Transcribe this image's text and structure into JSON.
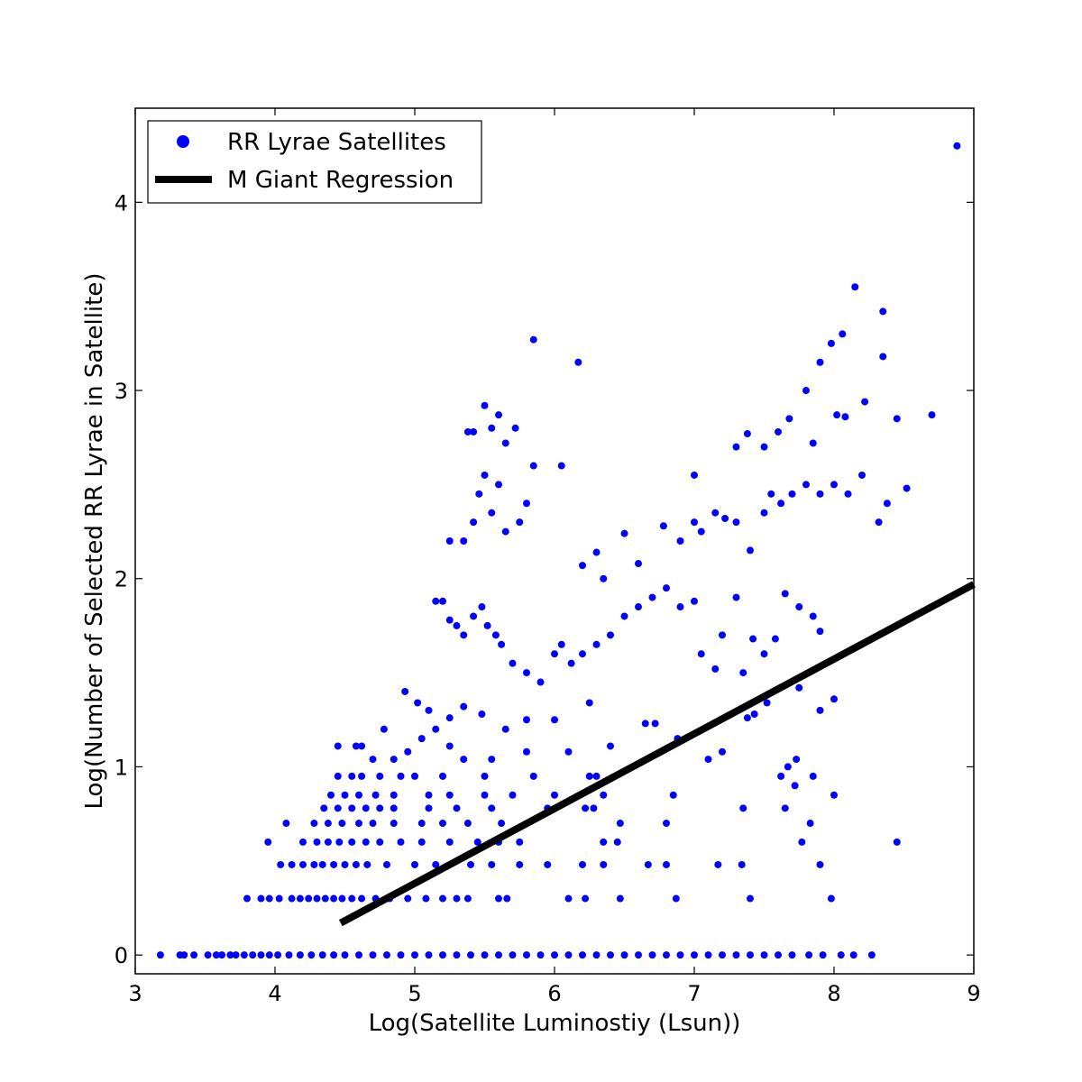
{
  "chart_data": {
    "type": "scatter",
    "title": "",
    "xlabel": "Log(Satellite Luminostiy (Lsun))",
    "ylabel": "Log(Number of Selected RR Lyrae in Satellite)",
    "xlim": [
      3,
      9
    ],
    "ylim": [
      -0.1,
      4.5
    ],
    "xticks": [
      "3",
      "4",
      "5",
      "6",
      "7",
      "8",
      "9"
    ],
    "yticks": [
      "0",
      "1",
      "2",
      "3",
      "4"
    ],
    "grid": false,
    "legend_position": "top-left",
    "colors": {
      "points": "#0000ff",
      "line": "#000000"
    },
    "series": [
      {
        "name": "RR Lyrae Satellites",
        "kind": "scatter",
        "points": [
          [
            3.18,
            0
          ],
          [
            3.32,
            0
          ],
          [
            3.35,
            0
          ],
          [
            3.42,
            0
          ],
          [
            3.52,
            0
          ],
          [
            3.58,
            0
          ],
          [
            3.62,
            0
          ],
          [
            3.68,
            0
          ],
          [
            3.72,
            0
          ],
          [
            3.78,
            0
          ],
          [
            3.84,
            0
          ],
          [
            3.9,
            0
          ],
          [
            3.96,
            0
          ],
          [
            4.02,
            0
          ],
          [
            4.1,
            0
          ],
          [
            4.18,
            0
          ],
          [
            4.26,
            0
          ],
          [
            4.34,
            0
          ],
          [
            4.42,
            0
          ],
          [
            4.5,
            0
          ],
          [
            4.6,
            0
          ],
          [
            4.7,
            0
          ],
          [
            4.8,
            0
          ],
          [
            4.9,
            0
          ],
          [
            5.0,
            0
          ],
          [
            5.1,
            0
          ],
          [
            5.2,
            0
          ],
          [
            5.3,
            0
          ],
          [
            5.4,
            0
          ],
          [
            5.5,
            0
          ],
          [
            5.6,
            0
          ],
          [
            5.7,
            0
          ],
          [
            5.8,
            0
          ],
          [
            5.9,
            0
          ],
          [
            6.0,
            0
          ],
          [
            6.1,
            0
          ],
          [
            6.2,
            0
          ],
          [
            6.3,
            0
          ],
          [
            6.4,
            0
          ],
          [
            6.5,
            0
          ],
          [
            6.6,
            0
          ],
          [
            6.7,
            0
          ],
          [
            6.8,
            0
          ],
          [
            6.9,
            0
          ],
          [
            7.0,
            0
          ],
          [
            7.1,
            0
          ],
          [
            7.2,
            0
          ],
          [
            7.3,
            0
          ],
          [
            7.4,
            0
          ],
          [
            7.5,
            0
          ],
          [
            7.6,
            0
          ],
          [
            7.7,
            0
          ],
          [
            7.82,
            0
          ],
          [
            7.92,
            0
          ],
          [
            8.05,
            0
          ],
          [
            8.14,
            0
          ],
          [
            8.27,
            0
          ],
          [
            3.8,
            0.3
          ],
          [
            3.9,
            0.3
          ],
          [
            3.96,
            0.3
          ],
          [
            4.03,
            0.3
          ],
          [
            4.12,
            0.3
          ],
          [
            4.18,
            0.3
          ],
          [
            4.24,
            0.3
          ],
          [
            4.3,
            0.3
          ],
          [
            4.36,
            0.3
          ],
          [
            4.42,
            0.3
          ],
          [
            4.48,
            0.3
          ],
          [
            4.55,
            0.3
          ],
          [
            4.62,
            0.3
          ],
          [
            4.72,
            0.3
          ],
          [
            4.82,
            0.3
          ],
          [
            4.95,
            0.3
          ],
          [
            5.08,
            0.3
          ],
          [
            5.2,
            0.3
          ],
          [
            5.3,
            0.3
          ],
          [
            5.38,
            0.3
          ],
          [
            5.6,
            0.3
          ],
          [
            5.66,
            0.3
          ],
          [
            6.1,
            0.3
          ],
          [
            6.22,
            0.3
          ],
          [
            6.47,
            0.3
          ],
          [
            6.87,
            0.3
          ],
          [
            7.4,
            0.3
          ],
          [
            7.98,
            0.3
          ],
          [
            3.95,
            0.6
          ],
          [
            4.04,
            0.48
          ],
          [
            4.12,
            0.48
          ],
          [
            4.2,
            0.48
          ],
          [
            4.28,
            0.48
          ],
          [
            4.34,
            0.48
          ],
          [
            4.42,
            0.48
          ],
          [
            4.5,
            0.48
          ],
          [
            4.58,
            0.48
          ],
          [
            4.66,
            0.48
          ],
          [
            4.8,
            0.48
          ],
          [
            5.0,
            0.48
          ],
          [
            5.15,
            0.48
          ],
          [
            5.4,
            0.48
          ],
          [
            5.55,
            0.48
          ],
          [
            5.75,
            0.48
          ],
          [
            5.95,
            0.48
          ],
          [
            6.2,
            0.48
          ],
          [
            6.35,
            0.48
          ],
          [
            6.67,
            0.48
          ],
          [
            6.8,
            0.48
          ],
          [
            7.17,
            0.48
          ],
          [
            7.34,
            0.48
          ],
          [
            7.9,
            0.48
          ],
          [
            4.2,
            0.6
          ],
          [
            4.3,
            0.6
          ],
          [
            4.38,
            0.6
          ],
          [
            4.46,
            0.6
          ],
          [
            4.55,
            0.6
          ],
          [
            4.65,
            0.6
          ],
          [
            4.75,
            0.6
          ],
          [
            4.9,
            0.6
          ],
          [
            5.05,
            0.6
          ],
          [
            5.25,
            0.6
          ],
          [
            5.45,
            0.6
          ],
          [
            5.6,
            0.6
          ],
          [
            5.75,
            0.6
          ],
          [
            6.35,
            0.6
          ],
          [
            6.45,
            0.6
          ],
          [
            7.77,
            0.6
          ],
          [
            8.45,
            0.6
          ],
          [
            4.08,
            0.7
          ],
          [
            4.28,
            0.7
          ],
          [
            4.38,
            0.7
          ],
          [
            4.48,
            0.7
          ],
          [
            4.6,
            0.7
          ],
          [
            4.7,
            0.7
          ],
          [
            4.85,
            0.7
          ],
          [
            5.05,
            0.7
          ],
          [
            5.2,
            0.7
          ],
          [
            5.38,
            0.7
          ],
          [
            5.62,
            0.7
          ],
          [
            6.47,
            0.7
          ],
          [
            6.8,
            0.7
          ],
          [
            7.83,
            0.7
          ],
          [
            4.35,
            0.78
          ],
          [
            4.45,
            0.78
          ],
          [
            4.55,
            0.78
          ],
          [
            4.65,
            0.78
          ],
          [
            4.75,
            0.78
          ],
          [
            4.85,
            0.78
          ],
          [
            5.1,
            0.78
          ],
          [
            5.3,
            0.78
          ],
          [
            5.55,
            0.78
          ],
          [
            5.95,
            0.78
          ],
          [
            6.22,
            0.78
          ],
          [
            6.28,
            0.78
          ],
          [
            7.35,
            0.78
          ],
          [
            7.65,
            0.78
          ],
          [
            4.4,
            0.85
          ],
          [
            4.5,
            0.85
          ],
          [
            4.6,
            0.85
          ],
          [
            4.72,
            0.85
          ],
          [
            4.85,
            0.85
          ],
          [
            5.1,
            0.85
          ],
          [
            5.25,
            0.85
          ],
          [
            5.5,
            0.85
          ],
          [
            5.7,
            0.85
          ],
          [
            6.0,
            0.85
          ],
          [
            6.35,
            0.85
          ],
          [
            6.85,
            0.85
          ],
          [
            7.72,
            0.9
          ],
          [
            7.85,
            0.95
          ],
          [
            8.0,
            0.85
          ],
          [
            4.45,
            0.95
          ],
          [
            4.55,
            0.95
          ],
          [
            4.62,
            0.95
          ],
          [
            4.75,
            0.95
          ],
          [
            4.9,
            0.95
          ],
          [
            5.0,
            0.95
          ],
          [
            5.2,
            0.95
          ],
          [
            5.5,
            0.95
          ],
          [
            5.85,
            0.95
          ],
          [
            6.25,
            0.95
          ],
          [
            6.3,
            0.95
          ],
          [
            7.62,
            0.95
          ],
          [
            7.67,
            1.0
          ],
          [
            4.45,
            1.11
          ],
          [
            4.58,
            1.11
          ],
          [
            4.62,
            1.11
          ],
          [
            4.7,
            1.04
          ],
          [
            4.85,
            1.04
          ],
          [
            4.95,
            1.08
          ],
          [
            5.05,
            1.15
          ],
          [
            5.15,
            1.2
          ],
          [
            5.25,
            1.11
          ],
          [
            5.35,
            1.04
          ],
          [
            5.55,
            1.04
          ],
          [
            5.8,
            1.08
          ],
          [
            6.1,
            1.08
          ],
          [
            6.4,
            1.11
          ],
          [
            6.72,
            1.23
          ],
          [
            7.1,
            1.04
          ],
          [
            7.2,
            1.08
          ],
          [
            7.73,
            1.04
          ],
          [
            4.78,
            1.2
          ],
          [
            4.93,
            1.4
          ],
          [
            5.02,
            1.34
          ],
          [
            5.1,
            1.3
          ],
          [
            5.25,
            1.26
          ],
          [
            5.35,
            1.32
          ],
          [
            5.48,
            1.28
          ],
          [
            5.65,
            1.2
          ],
          [
            5.8,
            1.25
          ],
          [
            6.0,
            1.25
          ],
          [
            6.25,
            1.34
          ],
          [
            6.65,
            1.23
          ],
          [
            6.88,
            1.15
          ],
          [
            7.38,
            1.26
          ],
          [
            7.43,
            1.28
          ],
          [
            7.52,
            1.34
          ],
          [
            7.75,
            1.42
          ],
          [
            7.9,
            1.3
          ],
          [
            8.0,
            1.36
          ],
          [
            5.15,
            1.88
          ],
          [
            5.2,
            1.88
          ],
          [
            5.25,
            1.78
          ],
          [
            5.3,
            1.75
          ],
          [
            5.35,
            1.7
          ],
          [
            5.42,
            1.8
          ],
          [
            5.48,
            1.85
          ],
          [
            5.52,
            1.75
          ],
          [
            5.58,
            1.7
          ],
          [
            5.62,
            1.65
          ],
          [
            5.7,
            1.55
          ],
          [
            5.8,
            1.5
          ],
          [
            5.9,
            1.45
          ],
          [
            6.0,
            1.6
          ],
          [
            6.05,
            1.65
          ],
          [
            6.12,
            1.55
          ],
          [
            6.2,
            1.6
          ],
          [
            6.3,
            1.65
          ],
          [
            6.4,
            1.7
          ],
          [
            6.5,
            1.8
          ],
          [
            6.6,
            1.85
          ],
          [
            6.7,
            1.9
          ],
          [
            6.8,
            1.95
          ],
          [
            6.9,
            1.85
          ],
          [
            7.0,
            1.88
          ],
          [
            7.05,
            1.6
          ],
          [
            7.15,
            1.52
          ],
          [
            7.2,
            1.7
          ],
          [
            7.3,
            1.9
          ],
          [
            7.35,
            1.5
          ],
          [
            7.42,
            1.68
          ],
          [
            7.5,
            1.6
          ],
          [
            7.58,
            1.68
          ],
          [
            7.65,
            1.92
          ],
          [
            7.75,
            1.85
          ],
          [
            7.85,
            1.8
          ],
          [
            7.9,
            1.72
          ],
          [
            5.25,
            2.2
          ],
          [
            5.35,
            2.2
          ],
          [
            5.42,
            2.3
          ],
          [
            5.46,
            2.45
          ],
          [
            5.5,
            2.55
          ],
          [
            5.55,
            2.35
          ],
          [
            5.6,
            2.5
          ],
          [
            5.65,
            2.25
          ],
          [
            5.75,
            2.3
          ],
          [
            5.8,
            2.4
          ],
          [
            5.85,
            2.6
          ],
          [
            6.05,
            2.6
          ],
          [
            6.2,
            2.07
          ],
          [
            6.3,
            2.14
          ],
          [
            6.35,
            2.0
          ],
          [
            6.5,
            2.24
          ],
          [
            6.6,
            2.08
          ],
          [
            6.78,
            2.28
          ],
          [
            6.9,
            2.2
          ],
          [
            7.0,
            2.3
          ],
          [
            7.05,
            2.25
          ],
          [
            7.15,
            2.35
          ],
          [
            7.22,
            2.32
          ],
          [
            7.3,
            2.3
          ],
          [
            7.4,
            2.15
          ],
          [
            7.5,
            2.35
          ],
          [
            7.55,
            2.45
          ],
          [
            7.62,
            2.4
          ],
          [
            7.7,
            2.45
          ],
          [
            7.8,
            2.5
          ],
          [
            7.9,
            2.45
          ],
          [
            8.0,
            2.5
          ],
          [
            8.1,
            2.45
          ],
          [
            8.2,
            2.55
          ],
          [
            8.32,
            2.3
          ],
          [
            8.38,
            2.4
          ],
          [
            8.52,
            2.48
          ],
          [
            5.38,
            2.78
          ],
          [
            5.42,
            2.78
          ],
          [
            5.5,
            2.92
          ],
          [
            5.55,
            2.8
          ],
          [
            5.6,
            2.87
          ],
          [
            5.65,
            2.72
          ],
          [
            5.72,
            2.8
          ],
          [
            7.0,
            2.55
          ],
          [
            7.3,
            2.7
          ],
          [
            7.38,
            2.77
          ],
          [
            7.5,
            2.7
          ],
          [
            7.6,
            2.78
          ],
          [
            7.68,
            2.85
          ],
          [
            7.8,
            3.0
          ],
          [
            7.85,
            2.72
          ],
          [
            8.02,
            2.87
          ],
          [
            8.08,
            2.86
          ],
          [
            8.22,
            2.94
          ],
          [
            8.35,
            3.18
          ],
          [
            8.45,
            2.85
          ],
          [
            8.7,
            2.87
          ],
          [
            5.85,
            3.27
          ],
          [
            6.17,
            3.15
          ],
          [
            7.9,
            3.15
          ],
          [
            7.98,
            3.25
          ],
          [
            8.06,
            3.3
          ],
          [
            8.15,
            3.55
          ],
          [
            8.35,
            3.42
          ],
          [
            8.88,
            4.3
          ]
        ]
      },
      {
        "name": "M Giant Regression",
        "kind": "line",
        "points": [
          [
            4.47,
            0.17
          ],
          [
            9.0,
            1.97
          ]
        ]
      }
    ]
  }
}
